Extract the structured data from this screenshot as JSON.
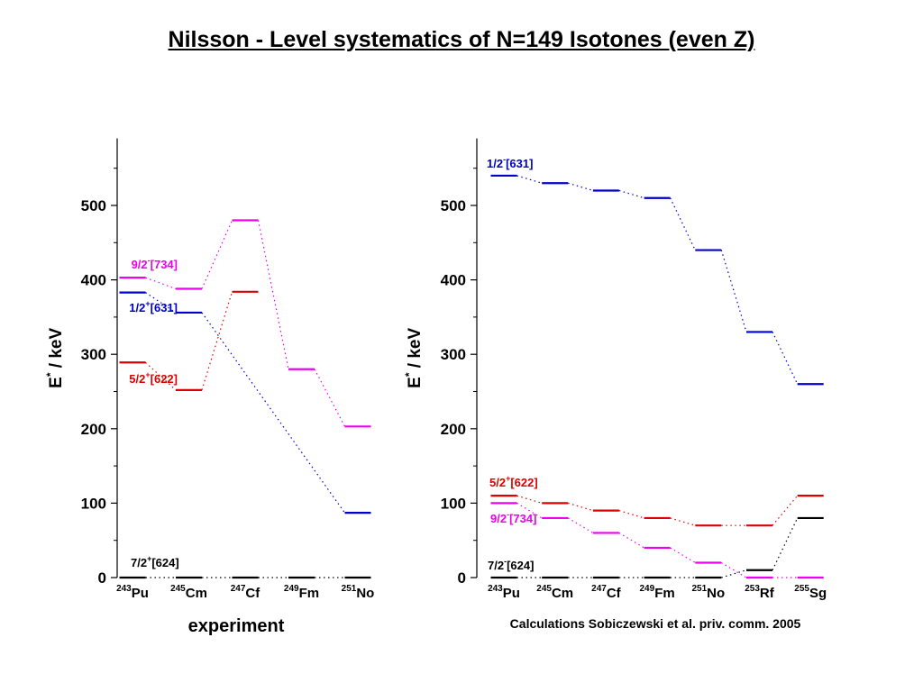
{
  "title": "Nilsson - Level systematics of N=149 Isotones (even Z)",
  "chart_data": [
    {
      "type": "level-scheme",
      "caption": "experiment",
      "ylabel": "E* / keV",
      "ylim": [
        0,
        590
      ],
      "yticks": [
        0,
        100,
        200,
        300,
        400,
        500
      ],
      "categories": [
        {
          "mass": "243",
          "element": "Pu"
        },
        {
          "mass": "245",
          "element": "Cm"
        },
        {
          "mass": "247",
          "element": "Cf"
        },
        {
          "mass": "249",
          "element": "Fm"
        },
        {
          "mass": "251",
          "element": "No"
        }
      ],
      "series": [
        {
          "name": "7/2+[624]",
          "base": "7/2",
          "parity": "+",
          "orbit": "[624]",
          "color": "#000000",
          "values": [
            0,
            0,
            0,
            0,
            0
          ]
        },
        {
          "name": "1/2+[631]",
          "base": "1/2",
          "parity": "+",
          "orbit": "[631]",
          "color": "#0000cc",
          "values": [
            383,
            356,
            null,
            null,
            87
          ]
        },
        {
          "name": "5/2+[622]",
          "base": "5/2",
          "parity": "+",
          "orbit": "[622]",
          "color": "#dd0000",
          "values": [
            289,
            252,
            384,
            null,
            null
          ]
        },
        {
          "name": "9/2-[734]",
          "base": "9/2",
          "parity": "-",
          "orbit": "[734]",
          "color": "#ee00ee",
          "values": [
            403,
            388,
            480,
            280,
            203
          ]
        }
      ]
    },
    {
      "type": "level-scheme",
      "caption": "Calculations Sobiczewski et al. priv. comm. 2005",
      "ylabel": "E* / keV",
      "ylim": [
        0,
        590
      ],
      "yticks": [
        0,
        100,
        200,
        300,
        400,
        500
      ],
      "categories": [
        {
          "mass": "243",
          "element": "Pu"
        },
        {
          "mass": "245",
          "element": "Cm"
        },
        {
          "mass": "247",
          "element": "Cf"
        },
        {
          "mass": "249",
          "element": "Fm"
        },
        {
          "mass": "251",
          "element": "No"
        },
        {
          "mass": "253",
          "element": "Rf"
        },
        {
          "mass": "255",
          "element": "Sg"
        }
      ],
      "series": [
        {
          "name": "1/2-[631]",
          "base": "1/2",
          "parity": "-",
          "orbit": "[631]",
          "color": "#0000cc",
          "values": [
            540,
            530,
            520,
            510,
            440,
            330,
            260
          ]
        },
        {
          "name": "5/2+[622]",
          "base": "5/2",
          "parity": "+",
          "orbit": "[622]",
          "color": "#dd0000",
          "values": [
            110,
            100,
            90,
            80,
            70,
            70,
            110
          ]
        },
        {
          "name": "9/2-[734]",
          "base": "9/2",
          "parity": "-",
          "orbit": "[734]",
          "color": "#ee00ee",
          "values": [
            100,
            80,
            60,
            40,
            20,
            0,
            0
          ]
        },
        {
          "name": "7/2-[624]",
          "base": "7/2",
          "parity": "-",
          "orbit": "[624]",
          "color": "#000000",
          "values": [
            0,
            0,
            0,
            0,
            0,
            10,
            80
          ]
        }
      ]
    }
  ]
}
